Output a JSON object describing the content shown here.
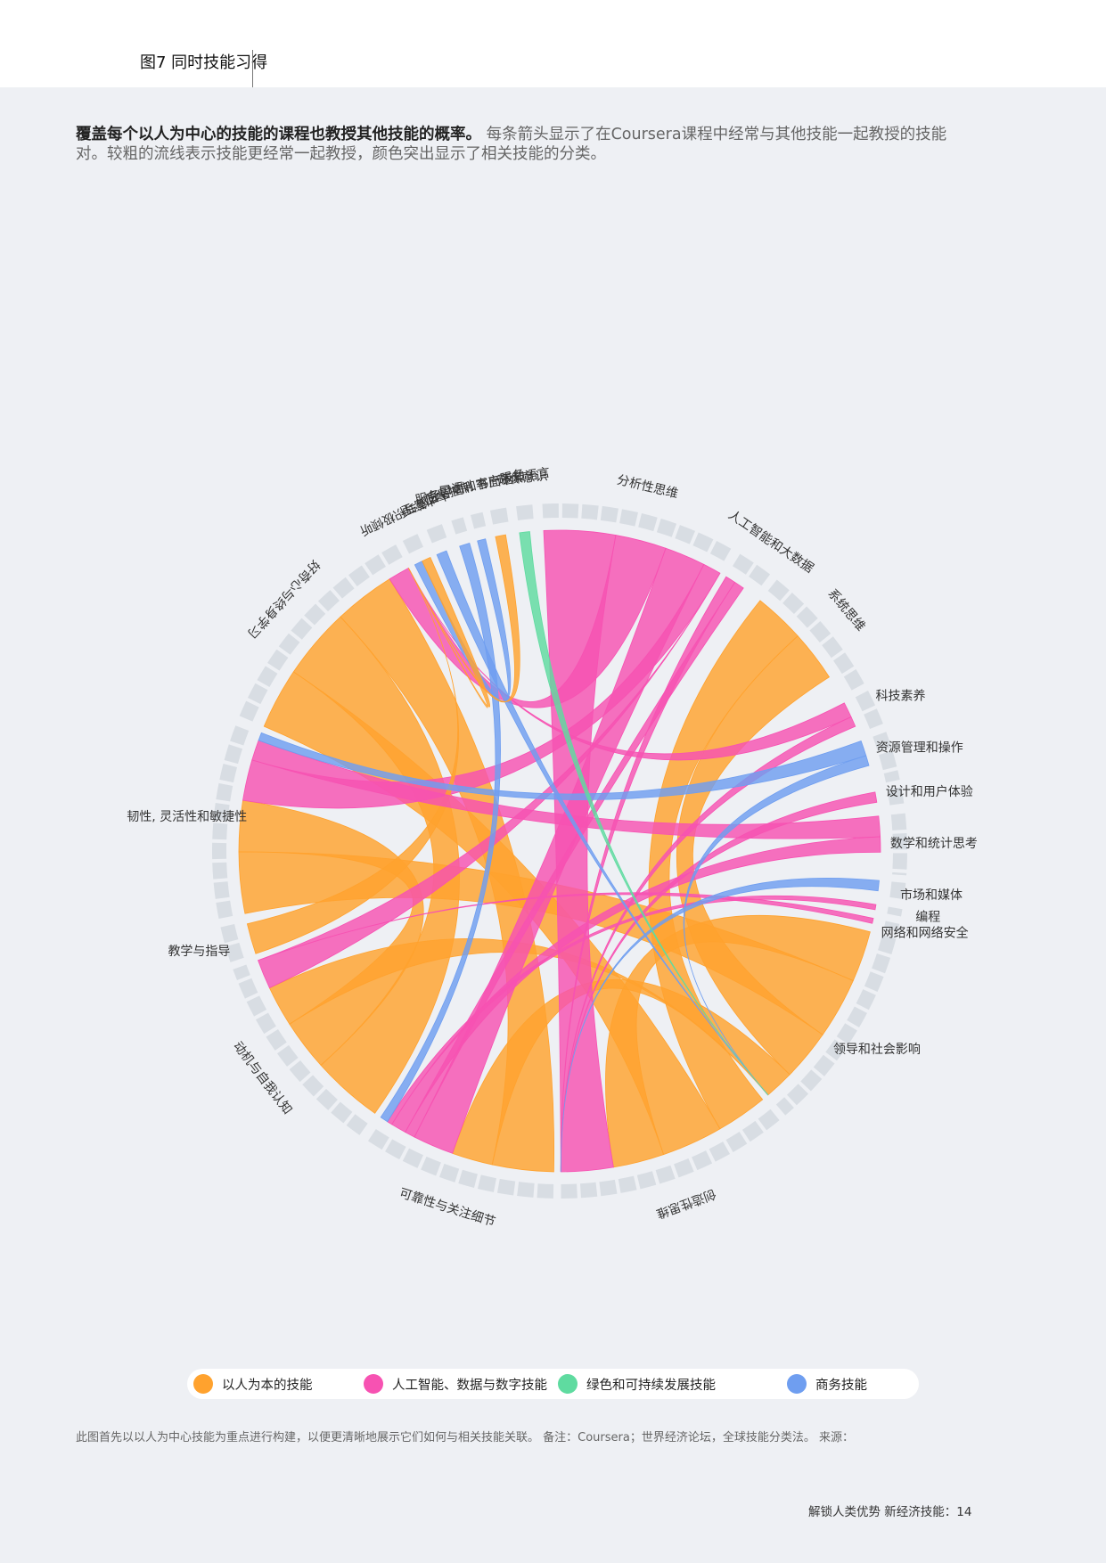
{
  "header": {
    "figure_title": "图7 同时技能习得"
  },
  "description": {
    "lead": "覆盖每个以人为中心的技能的课程也教授其他技能的概率。",
    "body": "每条箭头显示了在Coursera课程中经常与其他技能一起教授的技能对。较粗的流线表示技能更经常一起教授，颜色突出显示了相关技能的分类。"
  },
  "colors": {
    "human": "#ffa22e",
    "ai_data": "#f752b2",
    "green": "#5fdba0",
    "business": "#6f9ef0",
    "ring": "#d8dde3",
    "background": "#eef0f4"
  },
  "chart_data": {
    "type": "chord",
    "categories": [
      {
        "key": "human",
        "name": "以人为本的技能"
      },
      {
        "key": "ai_data",
        "name": "人工智能、数据与数字技能"
      },
      {
        "key": "green",
        "name": "绿色和可持续发展技能"
      },
      {
        "key": "business",
        "name": "商务技能"
      }
    ],
    "nodes": [
      {
        "id": "analytical",
        "label": "分析性思维",
        "category": "ai_data",
        "weight": 16
      },
      {
        "id": "ai_bigdata",
        "label": "人工智能和大数据",
        "category": "ai_data",
        "weight": 3
      },
      {
        "id": "systems",
        "label": "系统思维",
        "category": "human",
        "weight": 11
      },
      {
        "id": "tech_literacy",
        "label": "科技素养",
        "category": "ai_data",
        "weight": 3
      },
      {
        "id": "resource_mgmt",
        "label": "资源管理和操作",
        "category": "business",
        "weight": 4
      },
      {
        "id": "design_ux",
        "label": "设计和用户体验",
        "category": "ai_data",
        "weight": 1.5
      },
      {
        "id": "math_stats",
        "label": "数学和统计思考",
        "category": "ai_data",
        "weight": 5
      },
      {
        "id": "marketing",
        "label": "市场和媒体",
        "category": "business",
        "weight": 1.5
      },
      {
        "id": "programming",
        "label": "编程",
        "category": "ai_data",
        "weight": 0.6
      },
      {
        "id": "networks",
        "label": "网络和网络安全",
        "category": "ai_data",
        "weight": 0.6
      },
      {
        "id": "leadership",
        "label": "领导和社会影响",
        "category": "human",
        "weight": 17
      },
      {
        "id": "creative",
        "label": "创造性思维",
        "category": "human",
        "weight": 19
      },
      {
        "id": "reliability",
        "label": "可靠性与关注细节",
        "category": "human",
        "weight": 16
      },
      {
        "id": "motivation",
        "label": "动机与自我认知",
        "category": "human",
        "weight": 17
      },
      {
        "id": "teaching",
        "label": "教学与指导",
        "category": "human",
        "weight": 3
      },
      {
        "id": "resilience",
        "label": "韧性, 灵活性和敏捷性",
        "category": "human",
        "weight": 16
      },
      {
        "id": "curiosity",
        "label": "好奇心与终身学习",
        "category": "human",
        "weight": 19
      },
      {
        "id": "empathy",
        "label": "共情与积极倾听",
        "category": "human",
        "weight": 1.5
      },
      {
        "id": "talent_mgmt",
        "label": "人才管理",
        "category": "business",
        "weight": 1.5
      },
      {
        "id": "quality",
        "label": "质量控制",
        "category": "business",
        "weight": 1
      },
      {
        "id": "service",
        "label": "服务导向和客户服务",
        "category": "business",
        "weight": 1
      },
      {
        "id": "language",
        "label": "口语、书面语和语言",
        "category": "human",
        "weight": 1.5
      },
      {
        "id": "environment",
        "label": "环保意识",
        "category": "green",
        "weight": 1.5
      }
    ],
    "links": [
      {
        "source": "creative",
        "target": "systems",
        "value": 5
      },
      {
        "source": "creative",
        "target": "curiosity",
        "value": 6
      },
      {
        "source": "creative",
        "target": "leadership",
        "value": 5
      },
      {
        "source": "curiosity",
        "target": "motivation",
        "value": 7
      },
      {
        "source": "curiosity",
        "target": "reliability",
        "value": 6
      },
      {
        "source": "resilience",
        "target": "leadership",
        "value": 6
      },
      {
        "source": "resilience",
        "target": "motivation",
        "value": 5
      },
      {
        "source": "leadership",
        "target": "systems",
        "value": 5
      },
      {
        "source": "reliability",
        "target": "leadership",
        "value": 4
      },
      {
        "source": "motivation",
        "target": "leadership",
        "value": 4
      },
      {
        "source": "analytical",
        "target": "creative",
        "value": 7
      },
      {
        "source": "analytical",
        "target": "curiosity",
        "value": 5
      },
      {
        "source": "analytical",
        "target": "reliability",
        "value": 4
      },
      {
        "source": "analytical",
        "target": "resilience",
        "value": 4
      },
      {
        "source": "analytical",
        "target": "motivation",
        "value": 3
      },
      {
        "source": "teaching",
        "target": "curiosity",
        "value": 3
      },
      {
        "source": "ai_bigdata",
        "target": "creative",
        "value": 1
      },
      {
        "source": "ai_bigdata",
        "target": "reliability",
        "value": 1
      },
      {
        "source": "tech_literacy",
        "target": "curiosity",
        "value": 1.5
      },
      {
        "source": "tech_literacy",
        "target": "creative",
        "value": 1
      },
      {
        "source": "math_stats",
        "target": "resilience",
        "value": 2
      },
      {
        "source": "math_stats",
        "target": "reliability",
        "value": 1.5
      },
      {
        "source": "design_ux",
        "target": "creative",
        "value": 1
      },
      {
        "source": "programming",
        "target": "reliability",
        "value": 0.5
      },
      {
        "source": "networks",
        "target": "motivation",
        "value": 0.5
      },
      {
        "source": "resource_mgmt",
        "target": "resilience",
        "value": 1.5
      },
      {
        "source": "resource_mgmt",
        "target": "leadership",
        "value": 1
      },
      {
        "source": "marketing",
        "target": "creative",
        "value": 1
      },
      {
        "source": "talent_mgmt",
        "target": "leadership",
        "value": 1
      },
      {
        "source": "quality",
        "target": "reliability",
        "value": 1
      },
      {
        "source": "service",
        "target": "empathy",
        "value": 0.8
      },
      {
        "source": "environment",
        "target": "leadership",
        "value": 1
      },
      {
        "source": "language",
        "target": "curiosity",
        "value": 1
      },
      {
        "source": "empathy",
        "target": "curiosity",
        "value": 1
      }
    ]
  },
  "legend": {
    "human": "以人为本的技能",
    "ai_data": "人工智能、数据与数字技能",
    "green": "绿色和可持续发展技能",
    "business": "商务技能"
  },
  "footnote": "此图首先以以人为中心技能为重点进行构建，以便更清晰地展示它们如何与相关技能关联。   备注：Coursera；世界经济论坛，全球技能分类法。   来源：",
  "page_footer": "解锁人类优势 新经济技能：14"
}
